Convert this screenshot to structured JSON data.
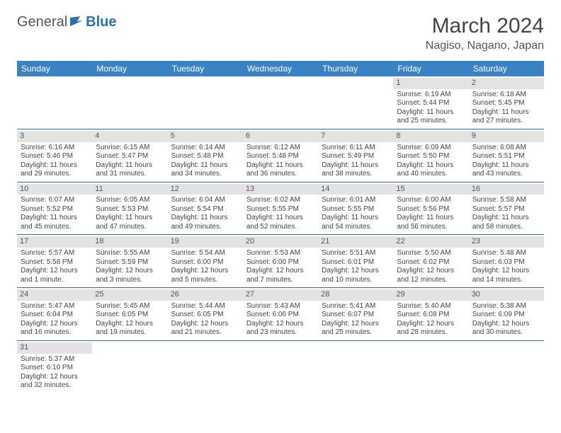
{
  "logo": {
    "text1": "General",
    "text2": "Blue"
  },
  "title": "March 2024",
  "location": "Nagiso, Nagano, Japan",
  "colors": {
    "header_bg": "#3b82c4",
    "accent": "#2d6fb5",
    "daynum_bg": "#e3e3e3",
    "text": "#444444"
  },
  "dayHeaders": [
    "Sunday",
    "Monday",
    "Tuesday",
    "Wednesday",
    "Thursday",
    "Friday",
    "Saturday"
  ],
  "weeks": [
    [
      {
        "n": "",
        "sr": "",
        "ss": "",
        "dl": ""
      },
      {
        "n": "",
        "sr": "",
        "ss": "",
        "dl": ""
      },
      {
        "n": "",
        "sr": "",
        "ss": "",
        "dl": ""
      },
      {
        "n": "",
        "sr": "",
        "ss": "",
        "dl": ""
      },
      {
        "n": "",
        "sr": "",
        "ss": "",
        "dl": ""
      },
      {
        "n": "1",
        "sr": "Sunrise: 6:19 AM",
        "ss": "Sunset: 5:44 PM",
        "dl": "Daylight: 11 hours and 25 minutes."
      },
      {
        "n": "2",
        "sr": "Sunrise: 6:18 AM",
        "ss": "Sunset: 5:45 PM",
        "dl": "Daylight: 11 hours and 27 minutes."
      }
    ],
    [
      {
        "n": "3",
        "sr": "Sunrise: 6:16 AM",
        "ss": "Sunset: 5:46 PM",
        "dl": "Daylight: 11 hours and 29 minutes."
      },
      {
        "n": "4",
        "sr": "Sunrise: 6:15 AM",
        "ss": "Sunset: 5:47 PM",
        "dl": "Daylight: 11 hours and 31 minutes."
      },
      {
        "n": "5",
        "sr": "Sunrise: 6:14 AM",
        "ss": "Sunset: 5:48 PM",
        "dl": "Daylight: 11 hours and 34 minutes."
      },
      {
        "n": "6",
        "sr": "Sunrise: 6:12 AM",
        "ss": "Sunset: 5:48 PM",
        "dl": "Daylight: 11 hours and 36 minutes."
      },
      {
        "n": "7",
        "sr": "Sunrise: 6:11 AM",
        "ss": "Sunset: 5:49 PM",
        "dl": "Daylight: 11 hours and 38 minutes."
      },
      {
        "n": "8",
        "sr": "Sunrise: 6:09 AM",
        "ss": "Sunset: 5:50 PM",
        "dl": "Daylight: 11 hours and 40 minutes."
      },
      {
        "n": "9",
        "sr": "Sunrise: 6:08 AM",
        "ss": "Sunset: 5:51 PM",
        "dl": "Daylight: 11 hours and 43 minutes."
      }
    ],
    [
      {
        "n": "10",
        "sr": "Sunrise: 6:07 AM",
        "ss": "Sunset: 5:52 PM",
        "dl": "Daylight: 11 hours and 45 minutes."
      },
      {
        "n": "11",
        "sr": "Sunrise: 6:05 AM",
        "ss": "Sunset: 5:53 PM",
        "dl": "Daylight: 11 hours and 47 minutes."
      },
      {
        "n": "12",
        "sr": "Sunrise: 6:04 AM",
        "ss": "Sunset: 5:54 PM",
        "dl": "Daylight: 11 hours and 49 minutes."
      },
      {
        "n": "13",
        "sr": "Sunrise: 6:02 AM",
        "ss": "Sunset: 5:55 PM",
        "dl": "Daylight: 11 hours and 52 minutes."
      },
      {
        "n": "14",
        "sr": "Sunrise: 6:01 AM",
        "ss": "Sunset: 5:55 PM",
        "dl": "Daylight: 11 hours and 54 minutes."
      },
      {
        "n": "15",
        "sr": "Sunrise: 6:00 AM",
        "ss": "Sunset: 5:56 PM",
        "dl": "Daylight: 11 hours and 56 minutes."
      },
      {
        "n": "16",
        "sr": "Sunrise: 5:58 AM",
        "ss": "Sunset: 5:57 PM",
        "dl": "Daylight: 11 hours and 58 minutes."
      }
    ],
    [
      {
        "n": "17",
        "sr": "Sunrise: 5:57 AM",
        "ss": "Sunset: 5:58 PM",
        "dl": "Daylight: 12 hours and 1 minute."
      },
      {
        "n": "18",
        "sr": "Sunrise: 5:55 AM",
        "ss": "Sunset: 5:59 PM",
        "dl": "Daylight: 12 hours and 3 minutes."
      },
      {
        "n": "19",
        "sr": "Sunrise: 5:54 AM",
        "ss": "Sunset: 6:00 PM",
        "dl": "Daylight: 12 hours and 5 minutes."
      },
      {
        "n": "20",
        "sr": "Sunrise: 5:53 AM",
        "ss": "Sunset: 6:00 PM",
        "dl": "Daylight: 12 hours and 7 minutes."
      },
      {
        "n": "21",
        "sr": "Sunrise: 5:51 AM",
        "ss": "Sunset: 6:01 PM",
        "dl": "Daylight: 12 hours and 10 minutes."
      },
      {
        "n": "22",
        "sr": "Sunrise: 5:50 AM",
        "ss": "Sunset: 6:02 PM",
        "dl": "Daylight: 12 hours and 12 minutes."
      },
      {
        "n": "23",
        "sr": "Sunrise: 5:48 AM",
        "ss": "Sunset: 6:03 PM",
        "dl": "Daylight: 12 hours and 14 minutes."
      }
    ],
    [
      {
        "n": "24",
        "sr": "Sunrise: 5:47 AM",
        "ss": "Sunset: 6:04 PM",
        "dl": "Daylight: 12 hours and 16 minutes."
      },
      {
        "n": "25",
        "sr": "Sunrise: 5:45 AM",
        "ss": "Sunset: 6:05 PM",
        "dl": "Daylight: 12 hours and 19 minutes."
      },
      {
        "n": "26",
        "sr": "Sunrise: 5:44 AM",
        "ss": "Sunset: 6:05 PM",
        "dl": "Daylight: 12 hours and 21 minutes."
      },
      {
        "n": "27",
        "sr": "Sunrise: 5:43 AM",
        "ss": "Sunset: 6:06 PM",
        "dl": "Daylight: 12 hours and 23 minutes."
      },
      {
        "n": "28",
        "sr": "Sunrise: 5:41 AM",
        "ss": "Sunset: 6:07 PM",
        "dl": "Daylight: 12 hours and 25 minutes."
      },
      {
        "n": "29",
        "sr": "Sunrise: 5:40 AM",
        "ss": "Sunset: 6:08 PM",
        "dl": "Daylight: 12 hours and 28 minutes."
      },
      {
        "n": "30",
        "sr": "Sunrise: 5:38 AM",
        "ss": "Sunset: 6:09 PM",
        "dl": "Daylight: 12 hours and 30 minutes."
      }
    ],
    [
      {
        "n": "31",
        "sr": "Sunrise: 5:37 AM",
        "ss": "Sunset: 6:10 PM",
        "dl": "Daylight: 12 hours and 32 minutes."
      },
      {
        "n": "",
        "sr": "",
        "ss": "",
        "dl": ""
      },
      {
        "n": "",
        "sr": "",
        "ss": "",
        "dl": ""
      },
      {
        "n": "",
        "sr": "",
        "ss": "",
        "dl": ""
      },
      {
        "n": "",
        "sr": "",
        "ss": "",
        "dl": ""
      },
      {
        "n": "",
        "sr": "",
        "ss": "",
        "dl": ""
      },
      {
        "n": "",
        "sr": "",
        "ss": "",
        "dl": ""
      }
    ]
  ]
}
